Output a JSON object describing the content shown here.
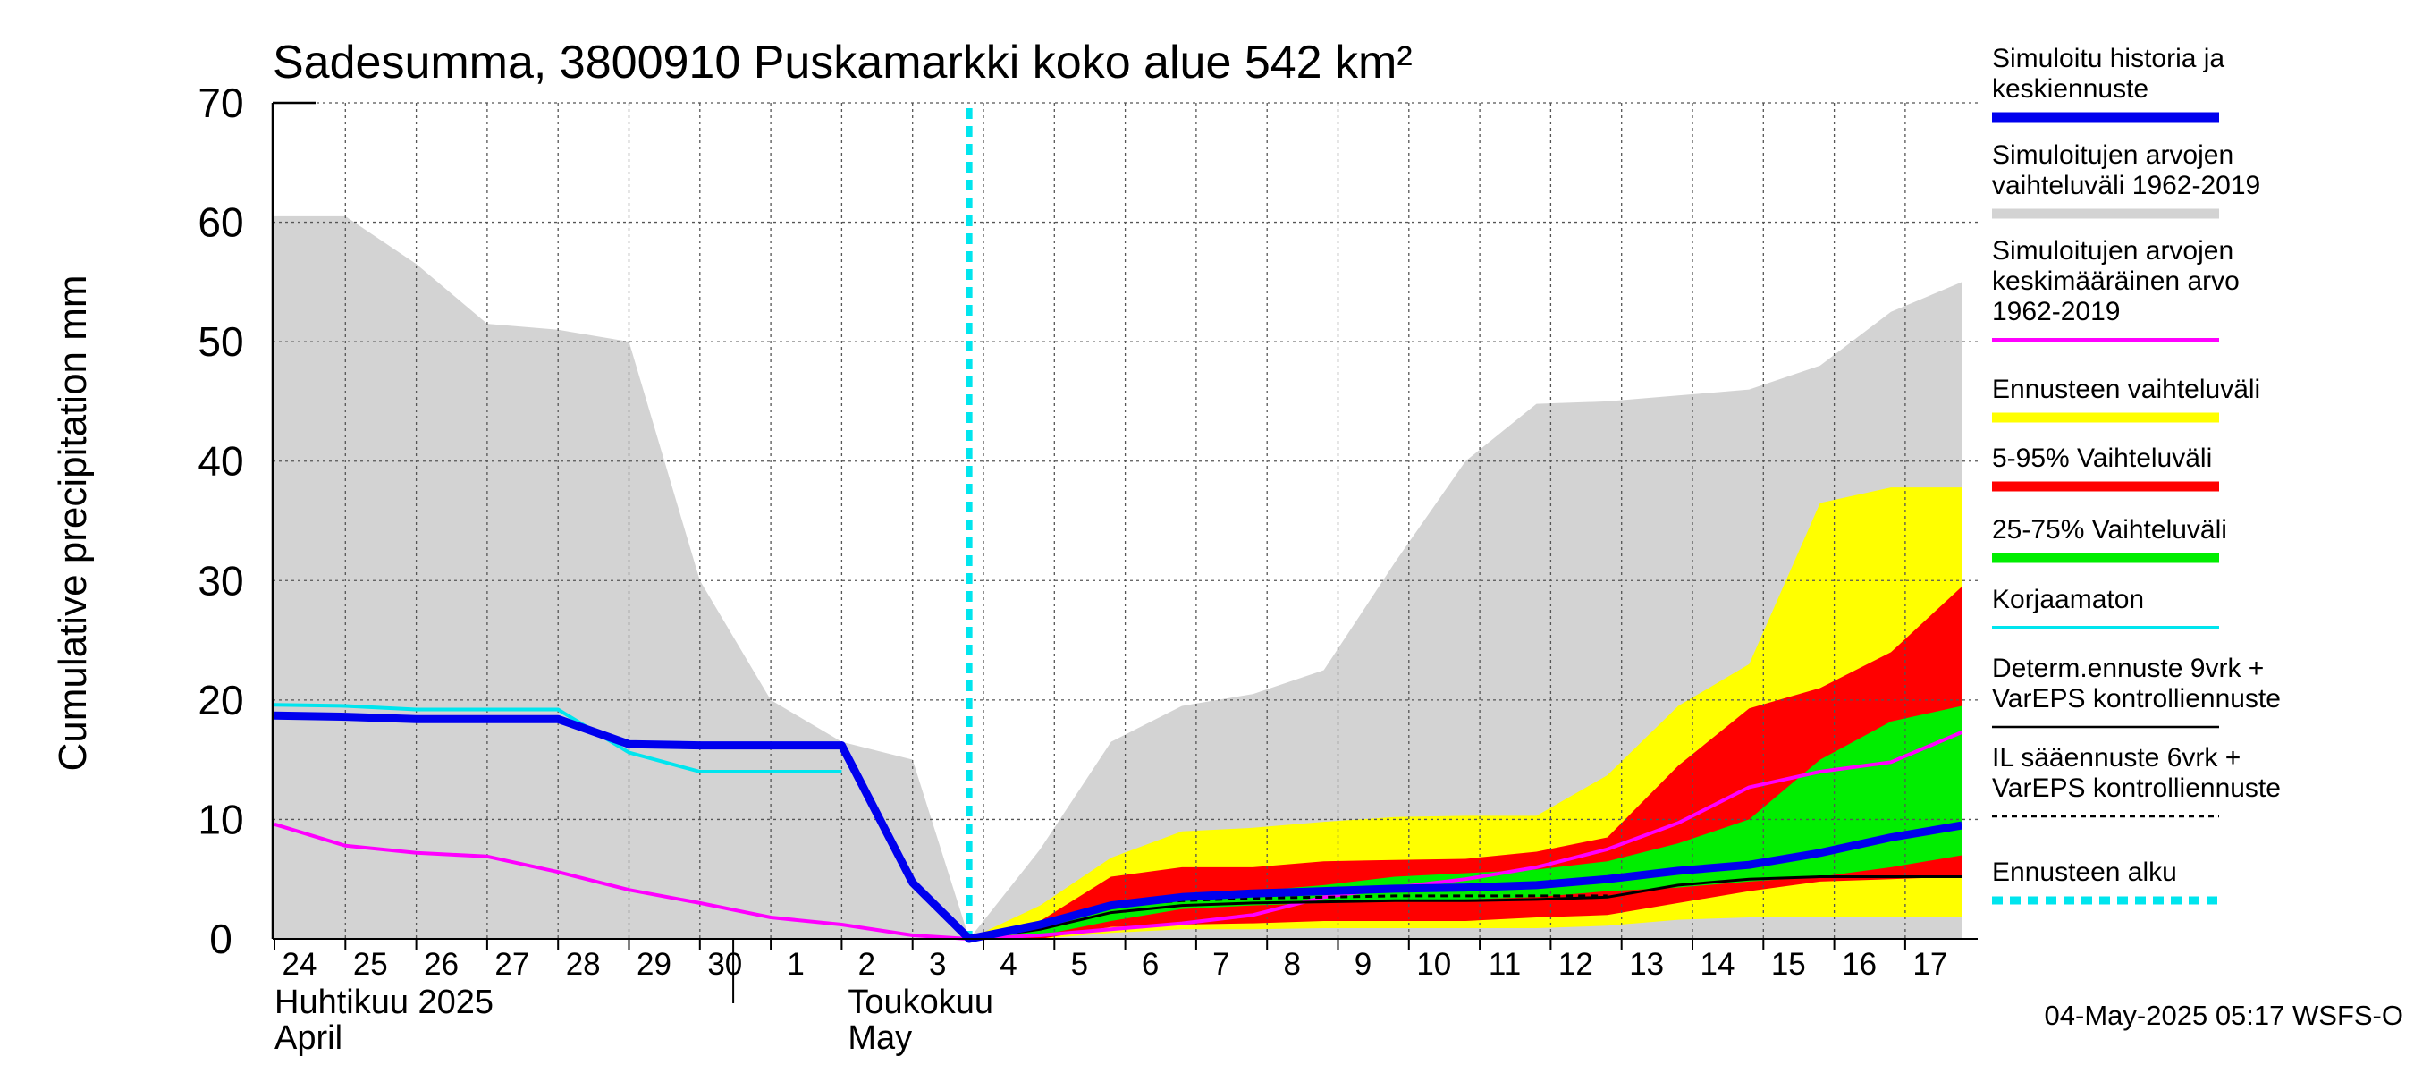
{
  "chart_data": {
    "type": "area",
    "title": "Sadesumma, 3800910 Puskamarkki koko alue 542 km²",
    "ylabel": "Cumulative precipitation   mm",
    "ylim": [
      0,
      70
    ],
    "yticks": [
      0,
      10,
      20,
      30,
      40,
      50,
      60,
      70
    ],
    "x": [
      "24",
      "25",
      "26",
      "27",
      "28",
      "29",
      "30",
      "1",
      "2",
      "3",
      "4",
      "5",
      "6",
      "7",
      "8",
      "9",
      "10",
      "11",
      "12",
      "13",
      "14",
      "15",
      "16",
      "17"
    ],
    "month_labels": [
      {
        "fi": "Huhtikuu  2025",
        "en": "April"
      },
      {
        "fi": "Toukokuu",
        "en": "May"
      }
    ],
    "forecast_start": 9.8,
    "series": [
      {
        "name": "Simuloitujen arvojen vaihteluväli 1962-2019",
        "kind": "band",
        "color": "#d3d3d3",
        "points": [
          [
            0,
            60.5,
            0
          ],
          [
            1,
            60.5,
            0
          ],
          [
            2,
            56.5,
            0
          ],
          [
            3,
            51.5,
            0
          ],
          [
            4,
            51,
            0
          ],
          [
            5,
            50,
            0
          ],
          [
            6,
            30,
            0
          ],
          [
            7,
            20,
            0
          ],
          [
            8,
            16.5,
            0
          ],
          [
            9,
            15,
            0
          ],
          [
            9.8,
            0,
            0
          ],
          [
            10.8,
            7.5,
            0
          ],
          [
            11.8,
            16.5,
            0
          ],
          [
            12.8,
            19.5,
            0
          ],
          [
            13.8,
            20.5,
            0
          ],
          [
            14.8,
            22.5,
            0
          ],
          [
            15.8,
            31.5,
            0
          ],
          [
            16.8,
            40,
            0
          ],
          [
            17.8,
            44.8,
            0
          ],
          [
            18.8,
            45,
            0
          ],
          [
            19.8,
            45.5,
            0
          ],
          [
            20.8,
            46,
            0
          ],
          [
            21.8,
            48,
            0
          ],
          [
            22.8,
            52.5,
            0
          ],
          [
            23.8,
            55,
            0
          ]
        ]
      },
      {
        "name": "Ennusteen vaihteluväli",
        "kind": "band",
        "color": "#ffff00",
        "points": [
          [
            9.8,
            0,
            0
          ],
          [
            10.8,
            2.8,
            0
          ],
          [
            11.8,
            6.8,
            0.5
          ],
          [
            12.8,
            9,
            0.8
          ],
          [
            13.8,
            9.3,
            0.8
          ],
          [
            14.8,
            9.8,
            0.9
          ],
          [
            15.8,
            10.2,
            0.9
          ],
          [
            16.8,
            10.3,
            0.9
          ],
          [
            17.8,
            10.3,
            0.9
          ],
          [
            18.8,
            13.7,
            1.1
          ],
          [
            19.8,
            19.5,
            1.6
          ],
          [
            20.8,
            23,
            1.8
          ],
          [
            21.8,
            36.5,
            1.8
          ],
          [
            22.8,
            37.8,
            1.8
          ],
          [
            23.8,
            37.8,
            1.8
          ]
        ]
      },
      {
        "name": "5-95% Vaihteluväli",
        "kind": "band",
        "color": "#ff0000",
        "points": [
          [
            9.8,
            0,
            0
          ],
          [
            10.8,
            1.5,
            0
          ],
          [
            11.8,
            5.2,
            1
          ],
          [
            12.8,
            6,
            1.2
          ],
          [
            13.8,
            6,
            1.3
          ],
          [
            14.8,
            6.5,
            1.5
          ],
          [
            15.8,
            6.6,
            1.5
          ],
          [
            16.8,
            6.7,
            1.5
          ],
          [
            17.8,
            7.3,
            1.8
          ],
          [
            18.8,
            8.5,
            2
          ],
          [
            19.8,
            14.5,
            3
          ],
          [
            20.8,
            19.3,
            4
          ],
          [
            21.8,
            21,
            4.8
          ],
          [
            22.8,
            24,
            5
          ],
          [
            23.8,
            29.5,
            5.2
          ]
        ]
      },
      {
        "name": "25-75% Vaihteluväli",
        "kind": "band",
        "color": "#00ee00",
        "points": [
          [
            9.8,
            0,
            0
          ],
          [
            10.8,
            1,
            0.3
          ],
          [
            11.8,
            3,
            1.5
          ],
          [
            12.8,
            3.7,
            2.5
          ],
          [
            13.8,
            4,
            2.8
          ],
          [
            14.8,
            4.5,
            3
          ],
          [
            15.8,
            5.2,
            3.2
          ],
          [
            16.8,
            5.5,
            3.3
          ],
          [
            17.8,
            5.8,
            3.5
          ],
          [
            18.8,
            6.5,
            4
          ],
          [
            19.8,
            8,
            4.3
          ],
          [
            20.8,
            10,
            4.8
          ],
          [
            21.8,
            15,
            5.2
          ],
          [
            22.8,
            18.2,
            6
          ],
          [
            23.8,
            19.5,
            7
          ]
        ]
      },
      {
        "name": "Simuloitujen arvojen keskimääräinen arvo 1962-2019",
        "kind": "line",
        "color": "#ff00ff",
        "width": 4,
        "points": [
          [
            0,
            9.6
          ],
          [
            1,
            7.8
          ],
          [
            2,
            7.2
          ],
          [
            3,
            6.9
          ],
          [
            4,
            5.6
          ],
          [
            5,
            4.1
          ],
          [
            6,
            3
          ],
          [
            7,
            1.8
          ],
          [
            8,
            1.2
          ],
          [
            9,
            0.3
          ],
          [
            9.8,
            0
          ],
          [
            10.8,
            0.3
          ],
          [
            11.8,
            0.8
          ],
          [
            12.8,
            1.3
          ],
          [
            13.8,
            2
          ],
          [
            14.8,
            3.5
          ],
          [
            15.8,
            4.3
          ],
          [
            16.8,
            5
          ],
          [
            17.8,
            6
          ],
          [
            18.8,
            7.5
          ],
          [
            19.8,
            9.7
          ],
          [
            20.8,
            12.7
          ],
          [
            21.8,
            14
          ],
          [
            22.8,
            14.8
          ],
          [
            23.8,
            17.3
          ]
        ]
      },
      {
        "name": "Korjaamaton",
        "kind": "line",
        "color": "#00e5ee",
        "width": 4,
        "points": [
          [
            0,
            19.6
          ],
          [
            1,
            19.5
          ],
          [
            2,
            19.2
          ],
          [
            3,
            19.2
          ],
          [
            4,
            19.2
          ],
          [
            5,
            15.6
          ],
          [
            6,
            14
          ],
          [
            7,
            14
          ],
          [
            8,
            14
          ]
        ]
      },
      {
        "name": "Determ.ennuste 9vrk + VarEPS kontrolliennuste",
        "kind": "line",
        "color": "#000000",
        "width": 3,
        "points": [
          [
            9.8,
            0
          ],
          [
            10.8,
            0.8
          ],
          [
            11.8,
            2.2
          ],
          [
            12.8,
            2.8
          ],
          [
            13.8,
            3
          ],
          [
            14.8,
            3.1
          ],
          [
            15.8,
            3.2
          ],
          [
            16.8,
            3.2
          ],
          [
            17.8,
            3.3
          ],
          [
            18.8,
            3.5
          ],
          [
            19.8,
            4.5
          ],
          [
            20.8,
            5
          ],
          [
            21.8,
            5.2
          ],
          [
            22.8,
            5.2
          ],
          [
            23.8,
            5.2
          ]
        ]
      },
      {
        "name": "IL sääennuste 6vrk + VarEPS kontrolliennuste",
        "kind": "line",
        "color": "#000000",
        "width": 3,
        "dash": "8,6",
        "points": [
          [
            9.8,
            0
          ],
          [
            10.8,
            1
          ],
          [
            11.8,
            2.8
          ],
          [
            12.8,
            3.2
          ],
          [
            13.8,
            3.4
          ],
          [
            14.8,
            3.5
          ],
          [
            15.8,
            3.6
          ],
          [
            16.8,
            3.6
          ],
          [
            17.8,
            3.6
          ],
          [
            18.8,
            3.6
          ]
        ]
      },
      {
        "name": "Simuloitu historia ja keskiennuste",
        "kind": "line",
        "color": "#0000ee",
        "width": 9,
        "points": [
          [
            0,
            18.7
          ],
          [
            1,
            18.6
          ],
          [
            2,
            18.4
          ],
          [
            3,
            18.4
          ],
          [
            4,
            18.4
          ],
          [
            5,
            16.3
          ],
          [
            6,
            16.2
          ],
          [
            7,
            16.2
          ],
          [
            8,
            16.2
          ],
          [
            9,
            4.7
          ],
          [
            9.8,
            0
          ],
          [
            10.8,
            1.2
          ],
          [
            11.8,
            2.8
          ],
          [
            12.8,
            3.5
          ],
          [
            13.8,
            3.8
          ],
          [
            14.8,
            4
          ],
          [
            15.8,
            4.2
          ],
          [
            16.8,
            4.3
          ],
          [
            17.8,
            4.5
          ],
          [
            18.8,
            5
          ],
          [
            19.8,
            5.7
          ],
          [
            20.8,
            6.2
          ],
          [
            21.8,
            7.2
          ],
          [
            22.8,
            8.5
          ],
          [
            23.8,
            9.5
          ]
        ]
      }
    ]
  },
  "legend": [
    {
      "lines": [
        "Simuloitu historia ja",
        "keskiennuste"
      ],
      "color": "#0000ee",
      "style": "line-thick"
    },
    {
      "lines": [
        "Simuloitujen arvojen",
        "vaihteluväli 1962-2019"
      ],
      "color": "#d3d3d3",
      "style": "line-thick"
    },
    {
      "lines": [
        "Simuloitujen arvojen",
        "keskimääräinen arvo",
        "   1962-2019"
      ],
      "color": "#ff00ff",
      "style": "line-thin"
    },
    {
      "lines": [
        "Ennusteen vaihteluväli"
      ],
      "color": "#ffff00",
      "style": "line-thick"
    },
    {
      "lines": [
        "5-95% Vaihteluväli"
      ],
      "color": "#ff0000",
      "style": "line-thick"
    },
    {
      "lines": [
        "25-75% Vaihteluväli"
      ],
      "color": "#00ee00",
      "style": "line-thick"
    },
    {
      "lines": [
        "Korjaamaton"
      ],
      "color": "#00e5ee",
      "style": "line-thin"
    },
    {
      "lines": [
        "Determ.ennuste 9vrk +",
        "VarEPS kontrolliennuste"
      ],
      "color": "#000000",
      "style": "line-thin"
    },
    {
      "lines": [
        "IL sääennuste 6vrk  +",
        "  VarEPS kontrolliennuste"
      ],
      "color": "#000000",
      "style": "dashed"
    },
    {
      "lines": [
        "Ennusteen alku"
      ],
      "color": "#00e5ee",
      "style": "dotted-thick"
    }
  ],
  "footer": "04-May-2025 05:17 WSFS-O"
}
